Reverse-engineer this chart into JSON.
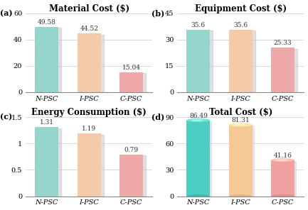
{
  "subplots": [
    {
      "label": "(a)",
      "title": "Material Cost ($)",
      "categories": [
        "N-PSC",
        "I-PSC",
        "C-PSC"
      ],
      "values": [
        49.58,
        44.52,
        15.04
      ],
      "ylim": [
        0,
        60
      ],
      "yticks": [
        0,
        20,
        40,
        60
      ],
      "bar_colors": [
        "#96D5CE",
        "#F5CAA8",
        "#EFA8A8"
      ],
      "shadow_color": "#C8C8C8",
      "cylindrical": false
    },
    {
      "label": "(b)",
      "title": "Equipment Cost ($)",
      "categories": [
        "N-PSC",
        "I-PSC",
        "C-PSC"
      ],
      "values": [
        35.6,
        35.6,
        25.33
      ],
      "ylim": [
        0,
        45
      ],
      "yticks": [
        0,
        15,
        30,
        45
      ],
      "bar_colors": [
        "#96D5CE",
        "#F5CAA8",
        "#EFA8A8"
      ],
      "shadow_color": "#C8C8C8",
      "cylindrical": false
    },
    {
      "label": "(c)",
      "title": "Energy Consumption ($)",
      "categories": [
        "N-PSC",
        "I-PSC",
        "C-PSC"
      ],
      "values": [
        1.31,
        1.19,
        0.79
      ],
      "ylim": [
        0,
        1.5
      ],
      "yticks": [
        0.0,
        0.5,
        1.0,
        1.5
      ],
      "bar_colors": [
        "#96D5CE",
        "#F5CAA8",
        "#EFA8A8"
      ],
      "shadow_color": "#C8C8C8",
      "cylindrical": false
    },
    {
      "label": "(d)",
      "title": "Total Cost ($)",
      "categories": [
        "N-PSC",
        "I-PSC",
        "C-PSC"
      ],
      "values": [
        86.49,
        81.31,
        41.16
      ],
      "ylim": [
        0,
        90
      ],
      "yticks": [
        0,
        30,
        60,
        90
      ],
      "bar_colors": [
        "#4ECDC4",
        "#F5C896",
        "#F0A0A0"
      ],
      "shadow_color": "#C8C8C8",
      "cylindrical": true
    }
  ],
  "bg_color": "#FFFFFF",
  "label_fontsize": 8,
  "title_fontsize": 8.5,
  "tick_fontsize": 7,
  "value_fontsize": 6.5,
  "bar_width": 0.55
}
